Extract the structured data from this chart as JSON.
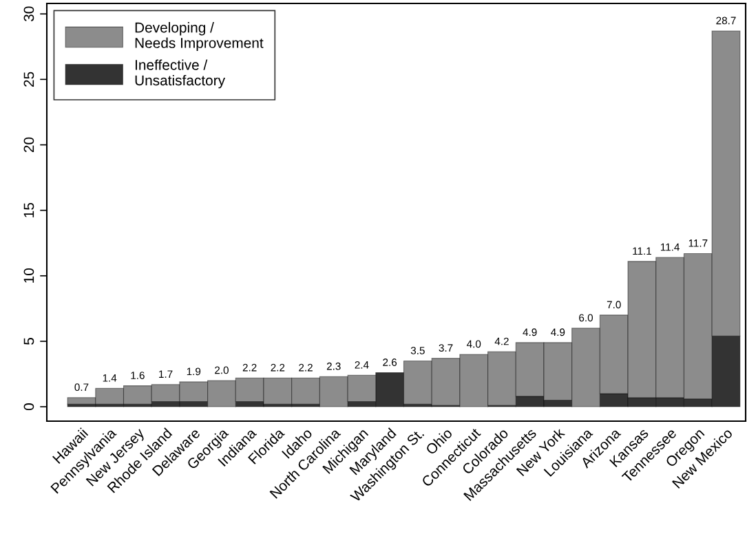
{
  "chart_data": {
    "type": "bar",
    "stacked": true,
    "categories": [
      "Hawaii",
      "Pennsylvania",
      "New Jersey",
      "Rhode Island",
      "Delaware",
      "Georgia",
      "Indiana",
      "Florida",
      "Idaho",
      "North Carolina",
      "Michigan",
      "Maryland",
      "Washington St.",
      "Ohio",
      "Connecticut",
      "Colorado",
      "Massachusetts",
      "New York",
      "Louisiana",
      "Arizona",
      "Kansas",
      "Tennessee",
      "Oregon",
      "New Mexico"
    ],
    "series": [
      {
        "name": "Ineffective / Unsatisfactory",
        "color": "#333333",
        "values": [
          0.2,
          0.2,
          0.2,
          0.4,
          0.4,
          0,
          0.4,
          0.2,
          0.2,
          0,
          0.4,
          2.6,
          0.2,
          0.1,
          0,
          0.1,
          0.8,
          0.5,
          0,
          1.0,
          0.7,
          0.7,
          0.6,
          5.4
        ]
      },
      {
        "name": "Developing / Needs Improvement",
        "color": "#8c8c8c",
        "values": [
          0.5,
          1.2,
          1.4,
          1.3,
          1.5,
          2.0,
          1.8,
          2.0,
          2.0,
          2.3,
          2.0,
          0,
          3.3,
          3.6,
          4.0,
          4.1,
          4.1,
          4.4,
          6.0,
          6.0,
          10.4,
          10.7,
          11.1,
          23.3
        ]
      }
    ],
    "totals": [
      "0.7",
      "1.4",
      "1.6",
      "1.7",
      "1.9",
      "2.0",
      "2.2",
      "2.2",
      "2.2",
      "2.3",
      "2.4",
      "2.6",
      "3.5",
      "3.7",
      "4.0",
      "4.2",
      "4.9",
      "4.9",
      "6.0",
      "7.0",
      "11.1",
      "11.4",
      "11.7",
      "28.7"
    ],
    "ylim": [
      -1.1,
      30.8
    ],
    "yticks": [
      0,
      5,
      10,
      15,
      20,
      25,
      30
    ],
    "grid": false,
    "legend": "top left"
  }
}
